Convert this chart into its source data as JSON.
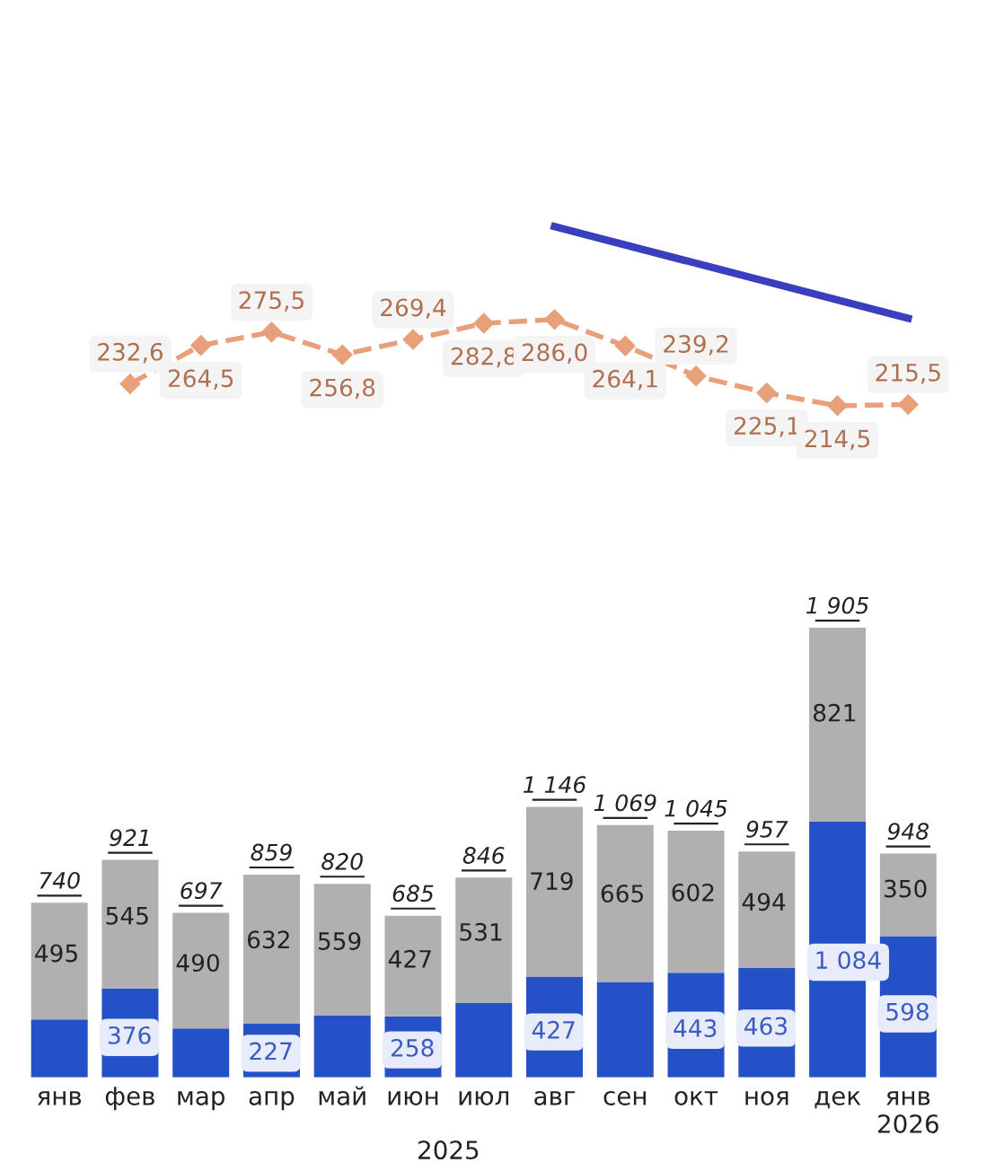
{
  "chart_data": [
    {
      "type": "bar",
      "stacked": true,
      "categories": [
        "янв",
        "фев",
        "мар",
        "апр",
        "май",
        "июн",
        "июл",
        "авг",
        "сен",
        "окт",
        "ноя",
        "дек",
        "янв\n2026"
      ],
      "series": [
        {
          "color": "#2450c8",
          "values": [
            245,
            376,
            207,
            227,
            261,
            258,
            315,
            427,
            404,
            443,
            463,
            1084,
            598
          ],
          "value_labels": [
            null,
            "376",
            null,
            "227",
            null,
            "258",
            null,
            "427",
            null,
            "443",
            "463",
            "1 084",
            "598"
          ]
        },
        {
          "color": "#b0b0b0",
          "values": [
            495,
            545,
            490,
            632,
            559,
            427,
            531,
            719,
            665,
            602,
            494,
            821,
            350
          ],
          "value_labels": [
            "495",
            "545",
            "490",
            "632",
            "559",
            "427",
            "531",
            "719",
            "665",
            "602",
            "494",
            "821",
            "350"
          ]
        }
      ],
      "totals": [
        "740",
        "921",
        "697",
        "859",
        "820",
        "685",
        "846",
        "1 146",
        "1 069",
        "1 045",
        "957",
        "1 905",
        "948"
      ],
      "annotations": [
        "2025"
      ],
      "grid": false,
      "legend": false
    },
    {
      "type": "line",
      "categories": [
        null,
        null,
        null,
        null,
        null,
        null,
        null,
        null,
        null,
        null,
        null,
        null,
        null
      ],
      "series": [
        {
          "color": "#e8a07a",
          "line_style": "dashed",
          "marker": "diamond",
          "values": [
            null,
            232.6,
            264.5,
            275.5,
            256.8,
            269.4,
            282.8,
            286.0,
            264.1,
            239.2,
            225.1,
            214.5,
            215.5
          ],
          "value_labels": [
            null,
            "232,6",
            "264,5",
            "275,5",
            "256,8",
            "269,4",
            "282,8",
            "286,0",
            "264,1",
            "239,2",
            "225,1",
            "214,5",
            "215,5"
          ]
        },
        {
          "color": "#3a3fc0",
          "line_style": "solid",
          "values": [
            null,
            null,
            null,
            null,
            null,
            null,
            null,
            363,
            null,
            null,
            null,
            null,
            287
          ]
        }
      ],
      "grid": false,
      "legend": false
    }
  ]
}
